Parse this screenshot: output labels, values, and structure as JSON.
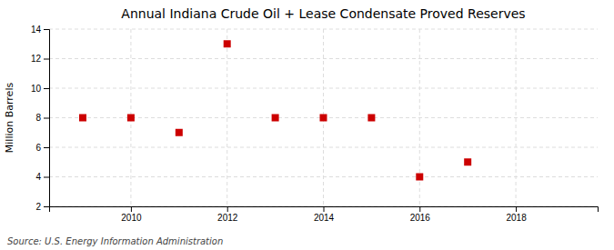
{
  "chart_data": {
    "type": "scatter",
    "title": "Annual Indiana Crude Oil + Lease Condensate Proved Reserves",
    "ylabel": "Million Barrels",
    "source": "Source: U.S. Energy Information Administration",
    "x": [
      2009,
      2010,
      2011,
      2012,
      2013,
      2014,
      2015,
      2016,
      2017
    ],
    "values": [
      8.0,
      8.0,
      7.0,
      13.0,
      8.0,
      8.0,
      8.0,
      4.0,
      5.0
    ],
    "color": "#cc0000",
    "marker": "square",
    "xlim": [
      2008.3,
      2019.7
    ],
    "ylim": [
      2,
      14
    ],
    "xticks": [
      2010,
      2012,
      2014,
      2016,
      2018
    ],
    "yticks": [
      2,
      4,
      6,
      8,
      10,
      12,
      14
    ],
    "grid": true
  }
}
